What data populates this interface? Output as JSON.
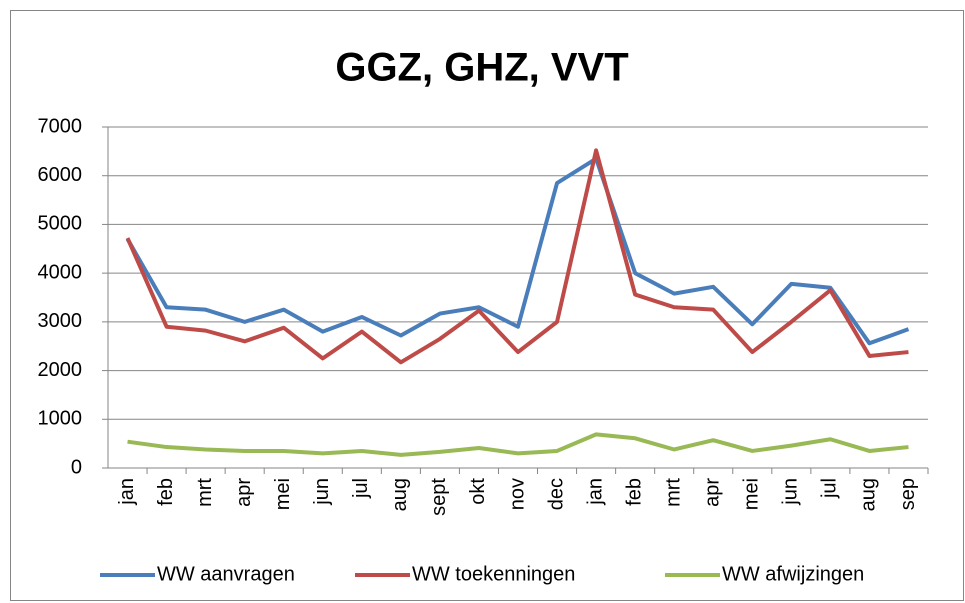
{
  "chart_data": {
    "type": "line",
    "title": "GGZ, GHZ, VVT",
    "categories": [
      "jan",
      "feb",
      "mrt",
      "apr",
      "mei",
      "jun",
      "jul",
      "aug",
      "sept",
      "okt",
      "nov",
      "dec",
      "jan",
      "feb",
      "mrt",
      "apr",
      "mei",
      "jun",
      "jul",
      "aug",
      "sep"
    ],
    "series": [
      {
        "name": "WW aanvragen",
        "color": "#4a7ebb",
        "values": [
          4700,
          3300,
          3250,
          3000,
          3250,
          2800,
          3100,
          2720,
          3170,
          3300,
          2900,
          5850,
          6350,
          4000,
          3580,
          3720,
          2950,
          3780,
          3700,
          2560,
          2850
        ]
      },
      {
        "name": "WW toekenningen",
        "color": "#be4b48",
        "values": [
          4720,
          2900,
          2820,
          2600,
          2880,
          2250,
          2800,
          2170,
          2650,
          3230,
          2380,
          3000,
          6520,
          3560,
          3300,
          3250,
          2380,
          3000,
          3650,
          2300,
          2380
        ]
      },
      {
        "name": "WW afwijzingen",
        "color": "#98b954",
        "values": [
          540,
          430,
          380,
          350,
          350,
          300,
          350,
          270,
          330,
          410,
          300,
          350,
          690,
          610,
          380,
          570,
          350,
          460,
          590,
          350,
          430
        ]
      }
    ],
    "ylim": [
      0,
      7000
    ],
    "yticks": [
      0,
      1000,
      2000,
      3000,
      4000,
      5000,
      6000,
      7000
    ],
    "grid": true,
    "legend": "bottom"
  }
}
